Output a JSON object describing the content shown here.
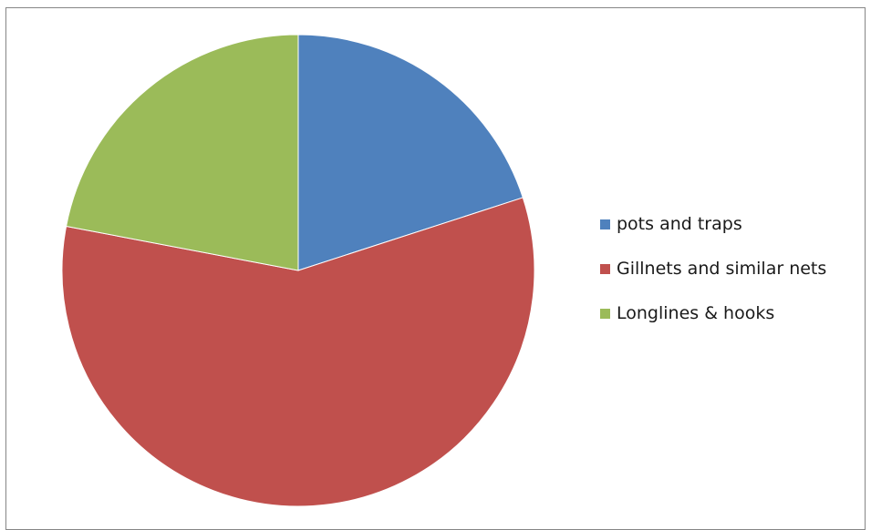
{
  "chart_data": {
    "type": "pie",
    "title": "",
    "categories": [
      "pots and traps",
      "Gillnets and similar nets",
      "Longlines & hooks"
    ],
    "values": [
      20,
      58,
      22
    ],
    "colors": [
      "#4f81bd",
      "#c0504d",
      "#9bbb59"
    ],
    "start_angle_deg": 0,
    "direction": "clockwise",
    "legend_position": "right"
  }
}
